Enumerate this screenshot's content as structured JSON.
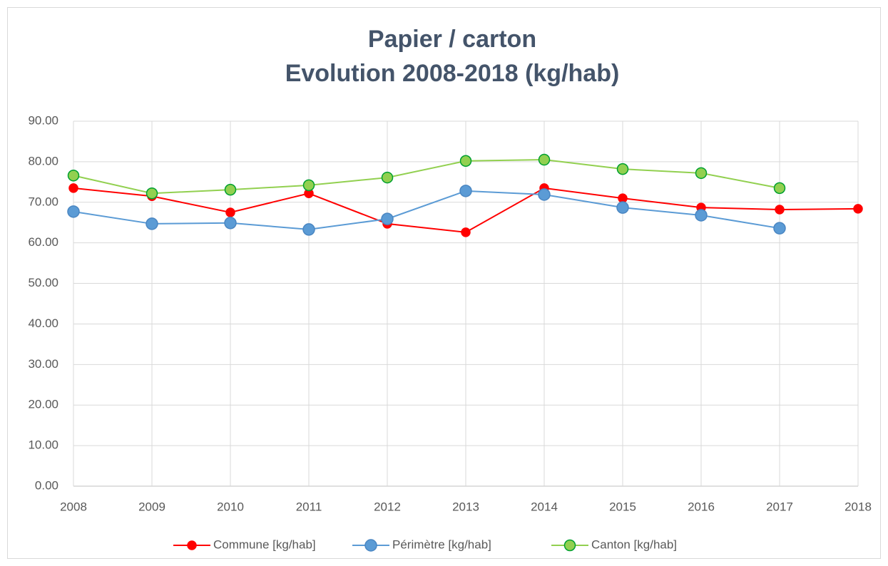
{
  "chart_data": {
    "type": "line",
    "title": "Papier / carton",
    "subtitle": "Evolution 2008-2018 (kg/hab)",
    "x": [
      2008,
      2009,
      2010,
      2011,
      2012,
      2013,
      2014,
      2015,
      2016,
      2017,
      2018
    ],
    "xlim": [
      2008,
      2018
    ],
    "xticks": [
      2008,
      2009,
      2010,
      2011,
      2012,
      2013,
      2014,
      2015,
      2016,
      2017,
      2018
    ],
    "ylim": [
      0,
      90
    ],
    "yticks": [
      {
        "value": 0,
        "label": "0.00"
      },
      {
        "value": 10,
        "label": "10.00"
      },
      {
        "value": 20,
        "label": "20.00"
      },
      {
        "value": 30,
        "label": "30.00"
      },
      {
        "value": 40,
        "label": "40.00"
      },
      {
        "value": 50,
        "label": "50.00"
      },
      {
        "value": 60,
        "label": "60.00"
      },
      {
        "value": 70,
        "label": "70.00"
      },
      {
        "value": 80,
        "label": "80.00"
      },
      {
        "value": 90,
        "label": "90.00"
      }
    ],
    "grid": true,
    "legend": "bottom",
    "series": [
      {
        "name": "Commune [kg/hab]",
        "color": "#ff0000",
        "marker_edge": "#ff0000",
        "marker_size": 6,
        "values": [
          73.5,
          71.5,
          67.5,
          72.2,
          64.7,
          62.6,
          73.5,
          71.0,
          68.7,
          68.2,
          68.4
        ]
      },
      {
        "name": "Périmètre [kg/hab]",
        "color": "#5b9bd5",
        "marker_edge": "#4a86c2",
        "marker_size": 8,
        "values": [
          67.7,
          64.7,
          64.9,
          63.3,
          65.9,
          72.8,
          71.9,
          68.7,
          66.8,
          63.6,
          null
        ]
      },
      {
        "name": "Canton [kg/hab]",
        "color": "#92d050",
        "marker_edge": "#00a030",
        "marker_size": 7.5,
        "values": [
          76.6,
          72.2,
          73.1,
          74.2,
          76.1,
          80.2,
          80.5,
          78.2,
          77.2,
          73.5,
          null
        ]
      }
    ]
  }
}
